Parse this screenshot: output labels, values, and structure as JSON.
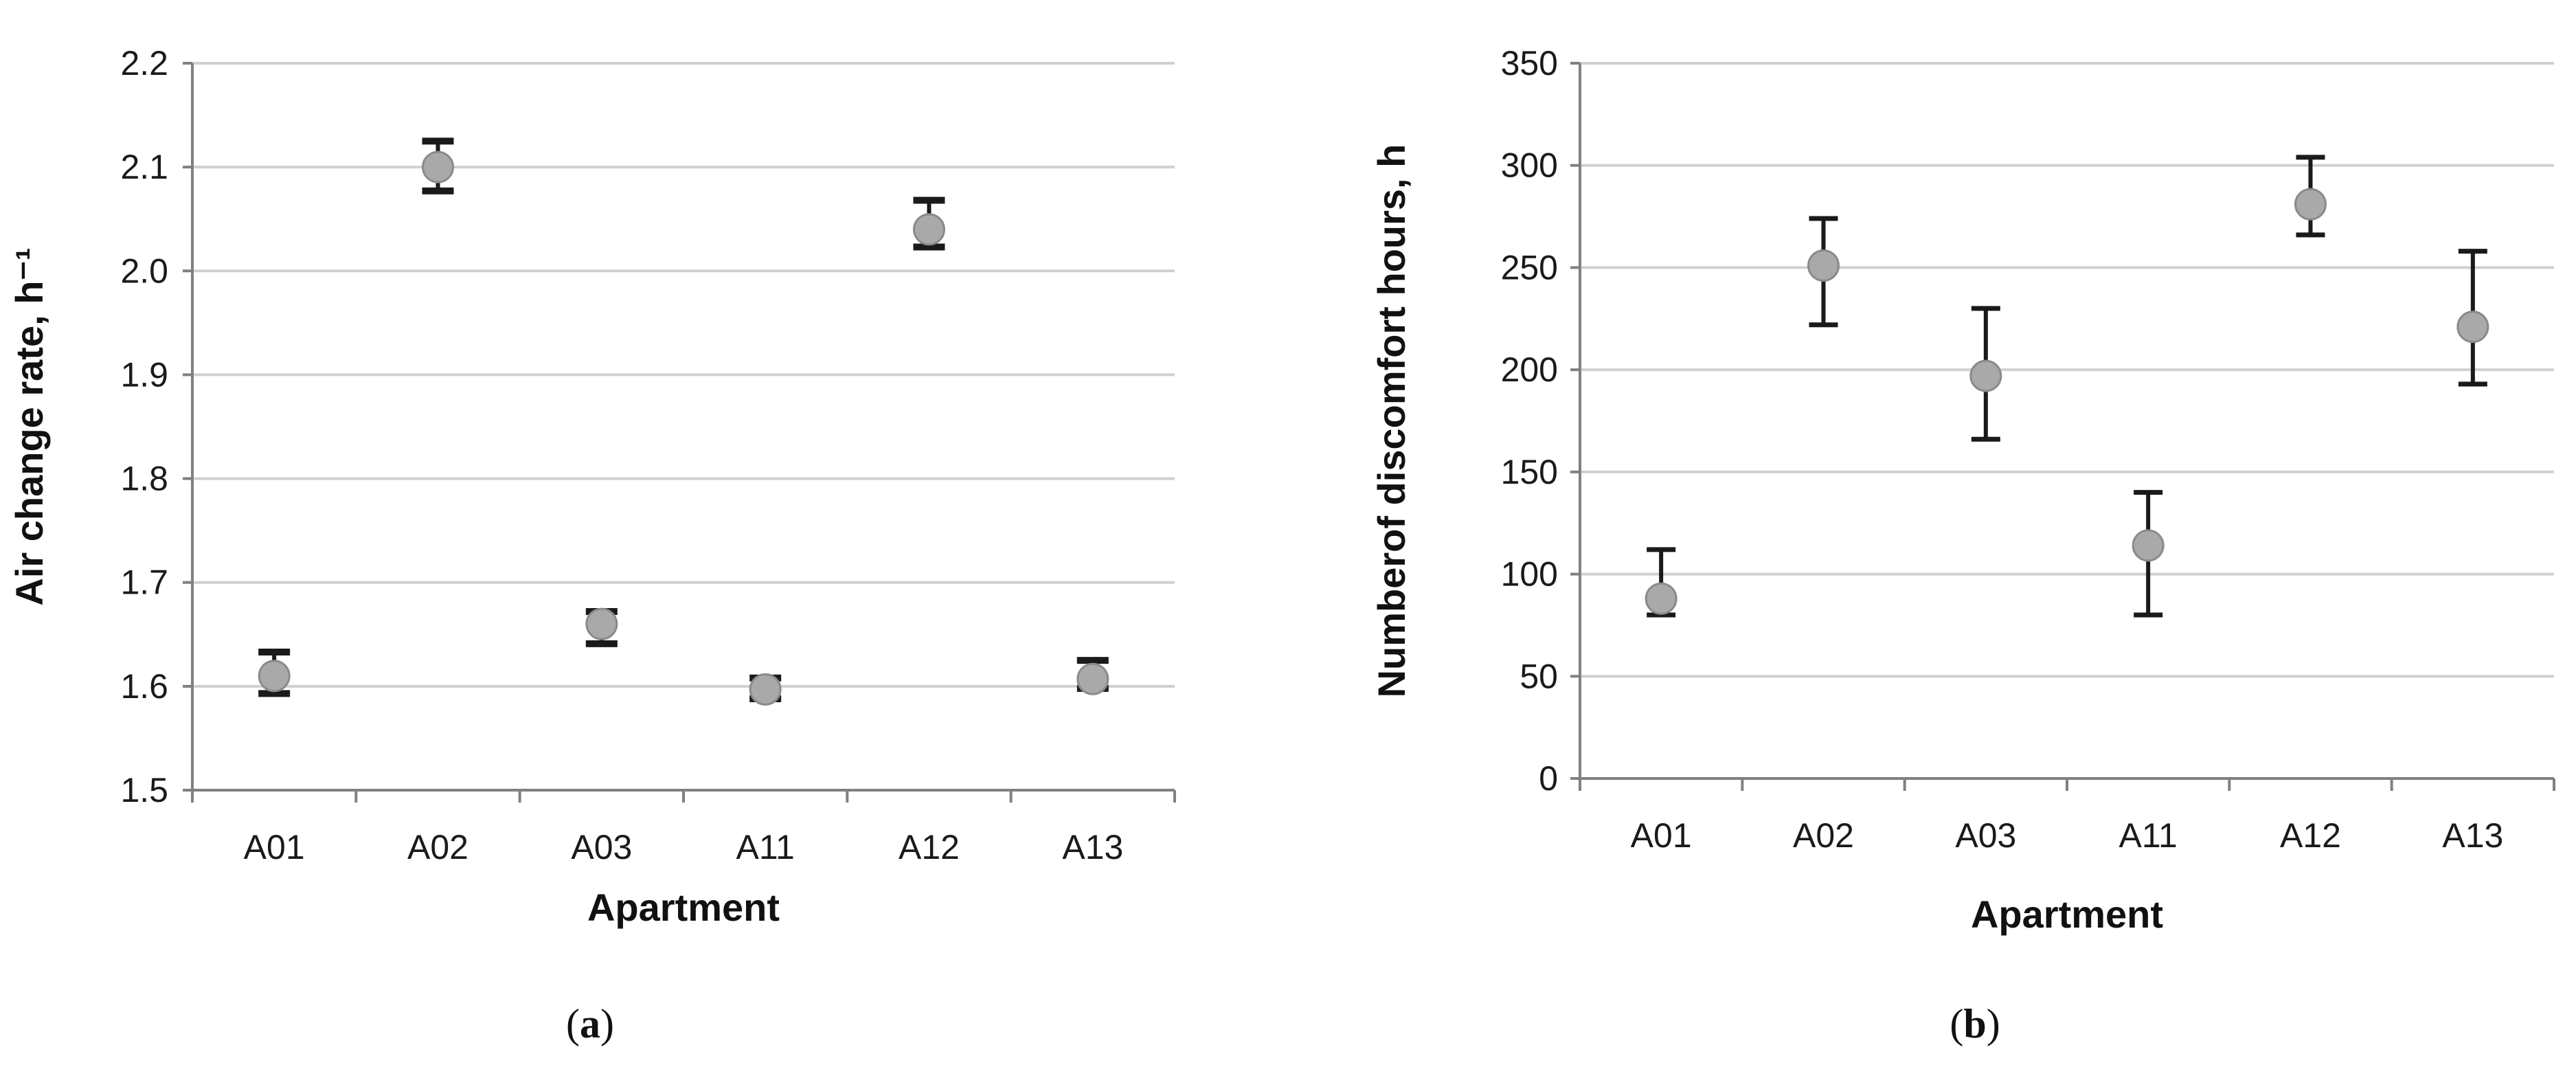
{
  "colors": {
    "marker_fill": "#a9a9a9",
    "marker_stroke": "#8a8a8a",
    "errorbar": "#1a1a1a",
    "gridline": "#d0d0d0",
    "axis": "#808080"
  },
  "panels": [
    {
      "open": "(",
      "letter": "a",
      "close": ")"
    },
    {
      "open": "(",
      "letter": "b",
      "close": ")"
    }
  ],
  "chart_data": [
    {
      "type": "scatter",
      "marker": "circle",
      "error_bars": true,
      "categories": [
        "A01",
        "A02",
        "A03",
        "A11",
        "A12",
        "A13"
      ],
      "series": [
        {
          "values": [
            1.61,
            2.1,
            1.66,
            1.597,
            2.04,
            1.607
          ],
          "err_lower": [
            1.593,
            2.077,
            1.641,
            1.588,
            2.023,
            1.598
          ],
          "err_upper": [
            1.633,
            2.125,
            1.672,
            1.608,
            2.068,
            1.625
          ]
        }
      ],
      "xlabel": "Apartment",
      "ylabel": "Air change rate, h⁻¹",
      "ylim": [
        1.5,
        2.2
      ],
      "yticks": [
        "1.5",
        "1.6",
        "1.7",
        "1.8",
        "1.9",
        "2.0",
        "2.1",
        "2.2"
      ],
      "grid": true
    },
    {
      "type": "scatter",
      "marker": "circle",
      "error_bars": true,
      "categories": [
        "A01",
        "A02",
        "A03",
        "A11",
        "A12",
        "A13"
      ],
      "series": [
        {
          "values": [
            88,
            251,
            197,
            114,
            281,
            221
          ],
          "err_lower": [
            80,
            222,
            166,
            80,
            266,
            193
          ],
          "err_upper": [
            112,
            274,
            230,
            140,
            304,
            258
          ]
        }
      ],
      "xlabel": "Apartment",
      "ylabel": "Numberof discomfort hours, h",
      "ylim": [
        0,
        350
      ],
      "yticks": [
        "0",
        "50",
        "100",
        "150",
        "200",
        "250",
        "300",
        "350"
      ],
      "grid": true
    }
  ]
}
